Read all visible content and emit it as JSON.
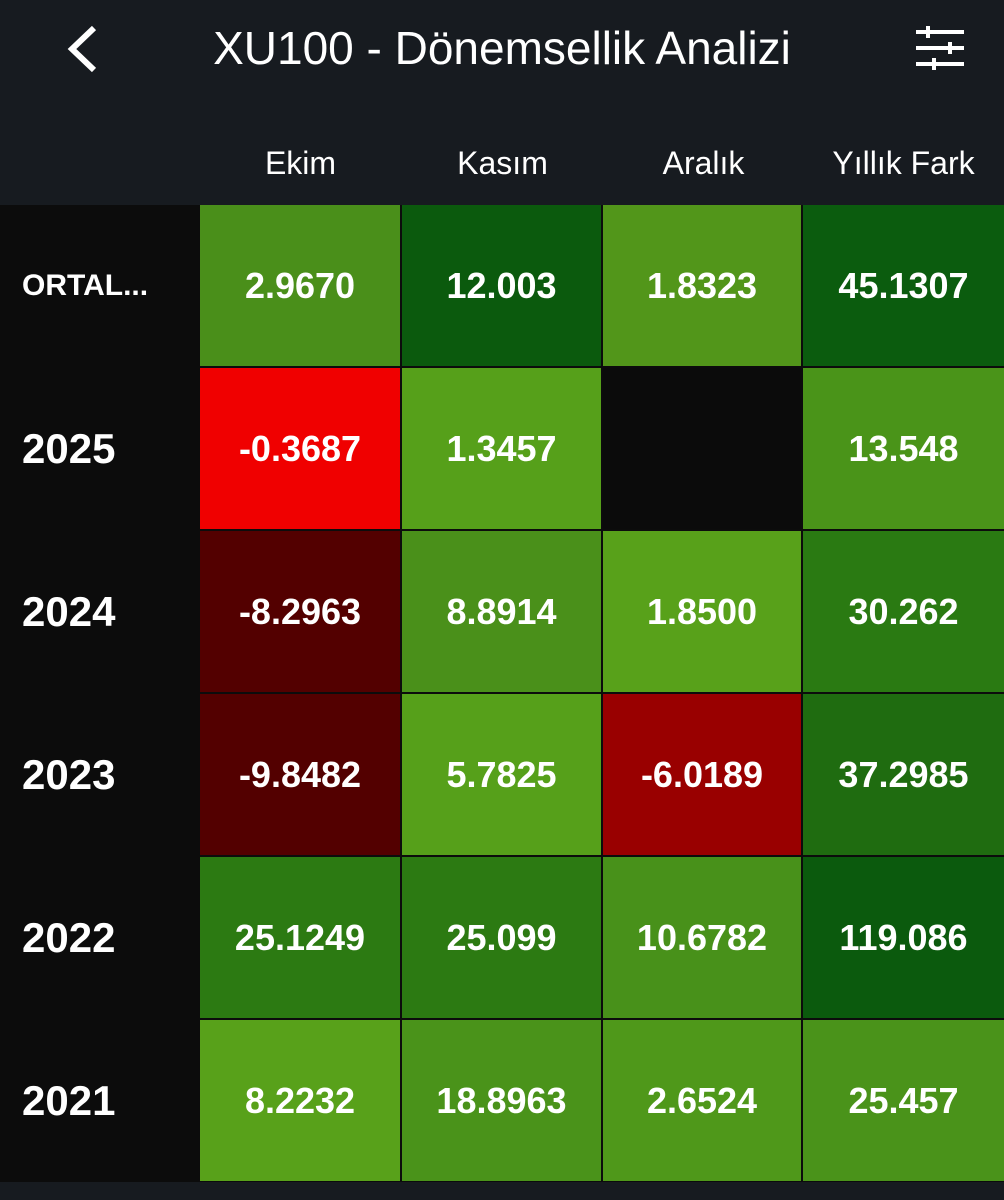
{
  "header": {
    "title": "XU100 - Dönemsellik Analizi"
  },
  "table": {
    "columns": [
      "Ekim",
      "Kasım",
      "Aralık",
      "Yıllık Fark"
    ],
    "rows": [
      {
        "label": "ORTAL...",
        "values": [
          "2.9670",
          "12.003",
          "1.8323",
          "45.1307"
        ]
      },
      {
        "label": "2025",
        "values": [
          "-0.3687",
          "1.3457",
          null,
          "13.548"
        ]
      },
      {
        "label": "2024",
        "values": [
          "-8.2963",
          "8.8914",
          "1.8500",
          "30.262"
        ]
      },
      {
        "label": "2023",
        "values": [
          "-9.8482",
          "5.7825",
          "-6.0189",
          "37.2985"
        ]
      },
      {
        "label": "2022",
        "values": [
          "25.1249",
          "25.099",
          "10.6782",
          "119.086"
        ]
      },
      {
        "label": "2021",
        "values": [
          "8.2232",
          "18.8963",
          "2.6524",
          "25.457"
        ]
      }
    ]
  }
}
